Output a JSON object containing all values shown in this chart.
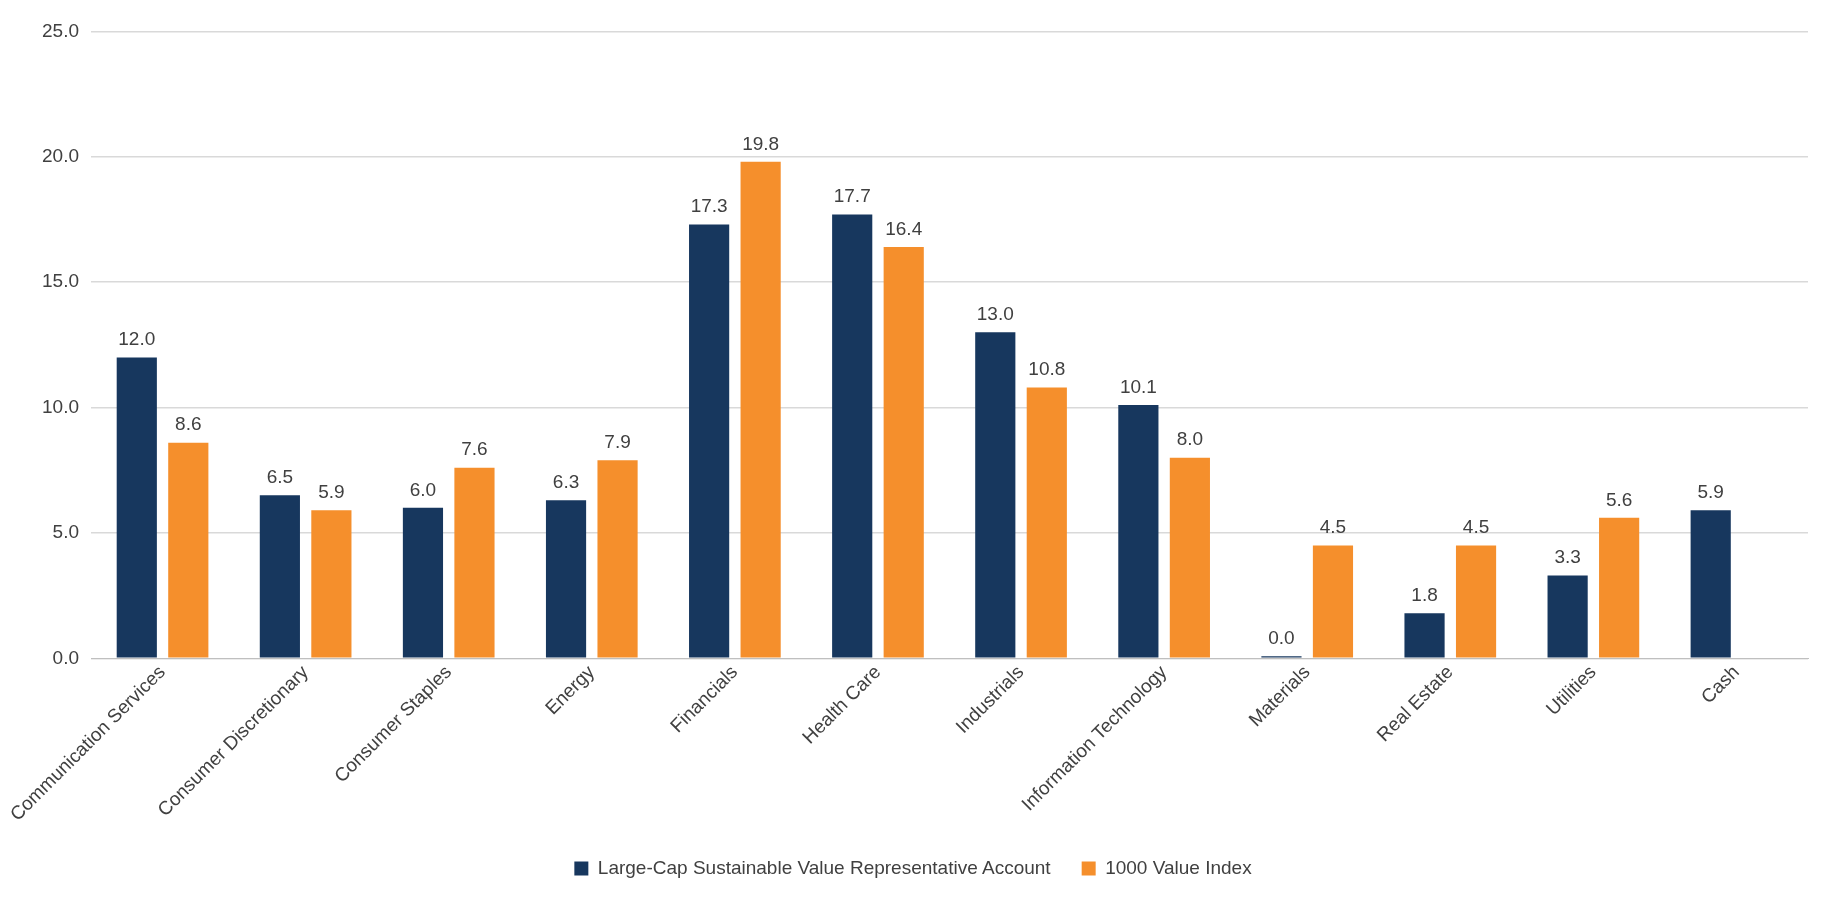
{
  "chart_data": {
    "type": "bar",
    "categories": [
      "Communication Services",
      "Consumer Discretionary",
      "Consumer Staples",
      "Energy",
      "Financials",
      "Health Care",
      "Industrials",
      "Information Technology",
      "Materials",
      "Real Estate",
      "Utilities",
      "Cash"
    ],
    "series": [
      {
        "name": "Large-Cap Sustainable Value Representative Account",
        "color": "#17375e",
        "values": [
          12.0,
          6.5,
          6.0,
          6.3,
          17.3,
          17.7,
          13.0,
          10.1,
          0.0,
          1.8,
          3.3,
          5.9
        ],
        "value_labels": [
          "12.0",
          "6.5",
          "6.0",
          "6.3",
          "17.3",
          "17.7",
          "13.0",
          "10.1",
          "0.0",
          "1.8",
          "3.3",
          "5.9"
        ]
      },
      {
        "name": "1000 Value Index",
        "color": "#f58f2c",
        "values": [
          8.6,
          5.9,
          7.6,
          7.9,
          19.8,
          16.4,
          10.8,
          8.0,
          4.5,
          4.5,
          5.6,
          null
        ],
        "value_labels": [
          "8.6",
          "5.9",
          "7.6",
          "7.9",
          "19.8",
          "16.4",
          "10.8",
          "8.0",
          "4.5",
          "4.5",
          "5.6",
          null
        ]
      }
    ],
    "ylim": [
      0,
      25
    ],
    "yticks": [
      {
        "value": 0,
        "label": "0.0"
      },
      {
        "value": 5,
        "label": "5.0"
      },
      {
        "value": 10,
        "label": "10.0"
      },
      {
        "value": 15,
        "label": "15.0"
      },
      {
        "value": 20,
        "label": "20.0"
      },
      {
        "value": 25,
        "label": "25.0"
      }
    ],
    "grid": "y",
    "legend": "bottom"
  }
}
